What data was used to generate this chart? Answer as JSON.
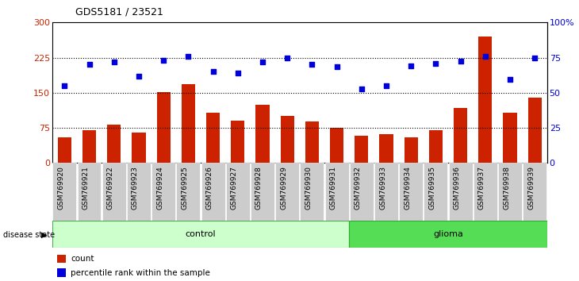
{
  "title": "GDS5181 / 23521",
  "samples": [
    "GSM769920",
    "GSM769921",
    "GSM769922",
    "GSM769923",
    "GSM769924",
    "GSM769925",
    "GSM769926",
    "GSM769927",
    "GSM769928",
    "GSM769929",
    "GSM769930",
    "GSM769931",
    "GSM769932",
    "GSM769933",
    "GSM769934",
    "GSM769935",
    "GSM769936",
    "GSM769937",
    "GSM769938",
    "GSM769939"
  ],
  "counts": [
    55,
    70,
    82,
    65,
    152,
    168,
    108,
    90,
    125,
    100,
    88,
    75,
    58,
    62,
    55,
    70,
    118,
    270,
    108,
    140
  ],
  "percentiles": [
    165,
    210,
    215,
    185,
    220,
    228,
    195,
    192,
    215,
    225,
    210,
    205,
    158,
    165,
    208,
    212,
    218,
    228,
    178,
    225
  ],
  "control_count": 12,
  "glioma_count": 8,
  "ylim_left": [
    0,
    300
  ],
  "ylim_right": [
    0,
    100
  ],
  "yticks_left": [
    0,
    75,
    150,
    225,
    300
  ],
  "yticks_right": [
    0,
    25,
    50,
    75,
    100
  ],
  "bar_color": "#cc2200",
  "dot_color": "#0000dd",
  "control_color": "#ccffcc",
  "glioma_color": "#55dd55",
  "tick_bg_color": "#cccccc",
  "legend_bar_label": "count",
  "legend_dot_label": "percentile rank within the sample",
  "control_label": "control",
  "glioma_label": "glioma",
  "disease_state_label": "disease state"
}
